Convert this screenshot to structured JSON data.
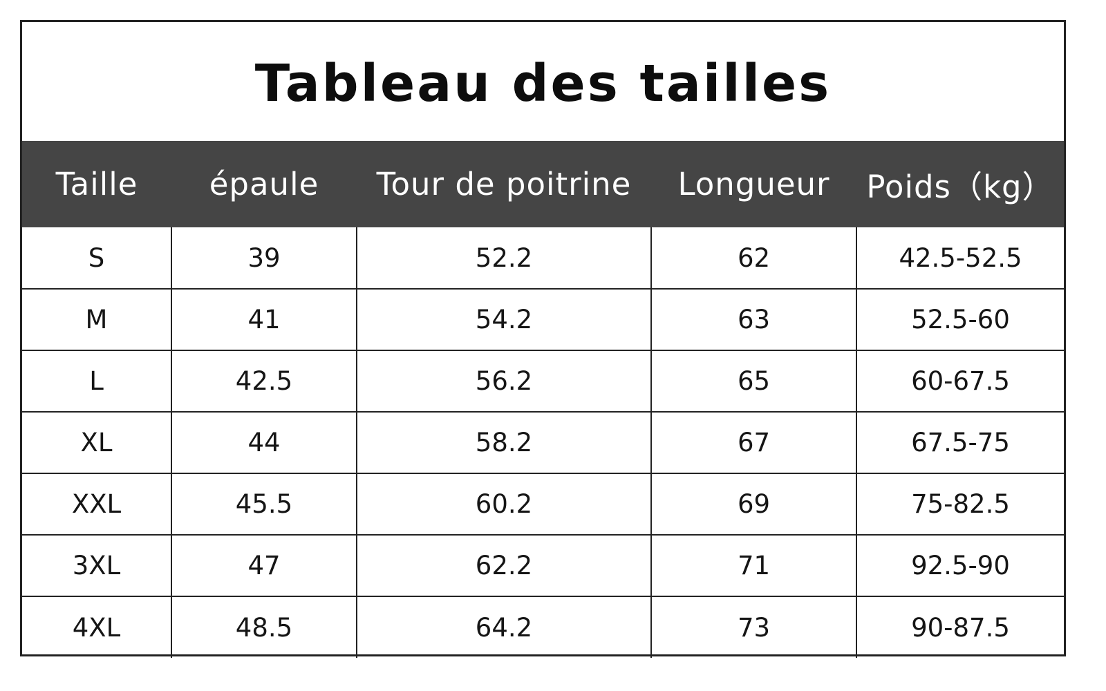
{
  "title": "Tableau des tailles",
  "table": {
    "headers": [
      "Taille",
      "épaule",
      "Tour de poitrine",
      "Longueur",
      "Poids（kg）"
    ],
    "rows": [
      [
        "S",
        "39",
        "52.2",
        "62",
        "42.5-52.5"
      ],
      [
        "M",
        "41",
        "54.2",
        "63",
        "52.5-60"
      ],
      [
        "L",
        "42.5",
        "56.2",
        "65",
        "60-67.5"
      ],
      [
        "XL",
        "44",
        "58.2",
        "67",
        "67.5-75"
      ],
      [
        "XXL",
        "45.5",
        "60.2",
        "69",
        "75-82.5"
      ],
      [
        "3XL",
        "47",
        "62.2",
        "71",
        "92.5-90"
      ],
      [
        "4XL",
        "48.5",
        "64.2",
        "73",
        "90-87.5"
      ]
    ]
  },
  "colors": {
    "header_background": "#454545",
    "header_text": "#ffffff",
    "border": "#222222"
  }
}
